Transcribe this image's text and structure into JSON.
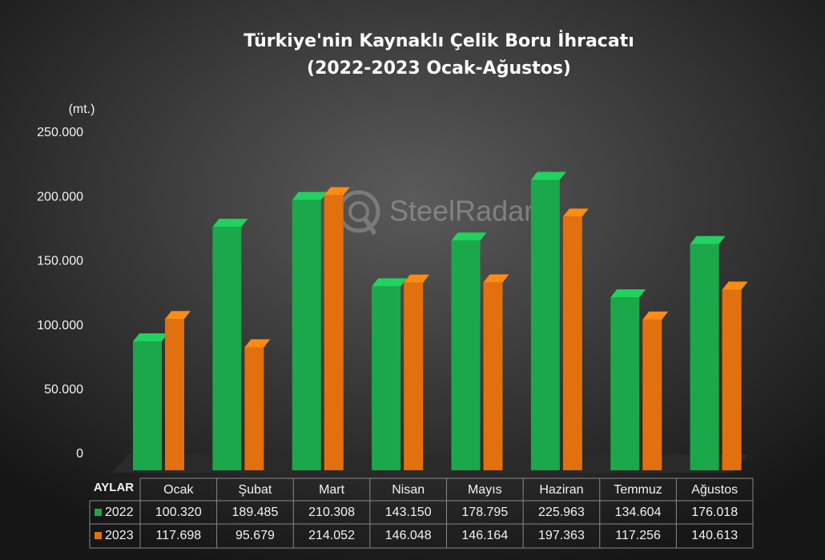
{
  "chart_data": {
    "type": "bar",
    "title": "Türkiye'nin Kaynaklı Çelik Boru İhracatı",
    "subtitle": "(2022-2023 Ocak-Ağustos)",
    "y_unit": "(mt.)",
    "watermark": "SteelRadar",
    "table_header": "AYLAR",
    "categories": [
      "Ocak",
      "Şubat",
      "Mart",
      "Nisan",
      "Mayıs",
      "Haziran",
      "Temmuz",
      "Ağustos"
    ],
    "series": [
      {
        "name": "2022",
        "color": "#1aa84a",
        "values": [
          100320,
          189485,
          210308,
          143150,
          178795,
          225963,
          134604,
          176018
        ],
        "value_labels": [
          "100.320",
          "189.485",
          "210.308",
          "143.150",
          "178.795",
          "225.963",
          "134.604",
          "176.018"
        ]
      },
      {
        "name": "2023",
        "color": "#e2700e",
        "values": [
          117698,
          95679,
          214052,
          146048,
          146164,
          197363,
          117256,
          140613
        ],
        "value_labels": [
          "117.698",
          "95.679",
          "214.052",
          "146.048",
          "146.164",
          "197.363",
          "117.256",
          "140.613"
        ]
      }
    ],
    "ylim": [
      0,
      250000
    ],
    "yticks": [
      0,
      {
        "value": 50000,
        "label": "50.000"
      },
      {
        "value": 100000,
        "label": "100.000"
      },
      {
        "value": 150000,
        "label": "150.000"
      },
      {
        "value": 200000,
        "label": "200.000"
      },
      {
        "value": 250000,
        "label": "250.000"
      }
    ],
    "grid": false
  }
}
